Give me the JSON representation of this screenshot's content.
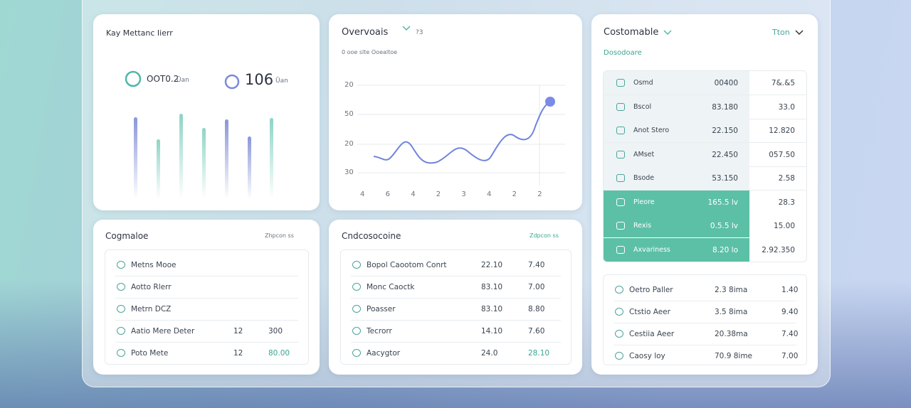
{
  "metrics_card": {
    "title": "Kay Mettanc Iierr",
    "metrics": [
      {
        "value": "OOT0.2",
        "unit": "Ūan"
      },
      {
        "value": "106",
        "unit": "Ūan"
      }
    ]
  },
  "overview_card": {
    "title": "Overvoais",
    "badge": "?3",
    "subtitle": "0 ooe slte Ooealtoe",
    "y_labels": [
      "20",
      "50",
      "20",
      "30"
    ],
    "x_labels": [
      "4",
      "6",
      "4",
      "2",
      "3",
      "4",
      "2",
      "2"
    ]
  },
  "custom_card": {
    "title": "Costomable",
    "filter": "Tton",
    "subtitle": "Dosodoare",
    "rows": [
      [
        "Osmd",
        "00400",
        "7&.&5"
      ],
      [
        "Bscol",
        "83.180",
        "33.0"
      ],
      [
        "Anot Stero",
        "22.150",
        "12.820"
      ],
      [
        "AMset",
        "22.450",
        "057.50"
      ],
      [
        "Bsode",
        "53.150",
        "2.58"
      ],
      [
        "Pleore",
        "165.5 lv",
        "28.3"
      ],
      [
        "Rexis",
        "0.5.5 lv",
        "15.00"
      ],
      [
        "Axvariness",
        "8.20 lo",
        "2.92.350"
      ]
    ],
    "list": [
      [
        "Oetro Paller",
        "2.3 8ima",
        "1.40"
      ],
      [
        "Ctstio Aeer",
        "3.5 8ima",
        "9.40"
      ],
      [
        "Cestiia Aeer",
        "20.38ma",
        "7.40"
      ],
      [
        "Caosy loy",
        "70.9 8ime",
        "7.00"
      ]
    ]
  },
  "left_list_card": {
    "title": "Cogmaloe",
    "link": "Zhpcon ss",
    "rows": [
      [
        "Metns Mooe"
      ],
      [
        "Aotto Rlerr"
      ],
      [
        "Metrn DCZ"
      ],
      [
        "Aatio Mere Deter",
        "12",
        "300"
      ],
      [
        "Poto Mete",
        "12",
        "80.00"
      ]
    ]
  },
  "middle_list_card": {
    "title": "Cndcosocoine",
    "link": "Zdpcon ss",
    "rows": [
      [
        "Bopol Caootom Conrt",
        "22.10",
        "7.40"
      ],
      [
        "Monc Caoctk",
        "83.10",
        "7.00"
      ],
      [
        "Poasser",
        "83.10",
        "8.80"
      ],
      [
        "Tecrorr",
        "14.10",
        "7.60"
      ],
      [
        "Aacygtor",
        "24.0",
        "28.10"
      ]
    ]
  }
}
